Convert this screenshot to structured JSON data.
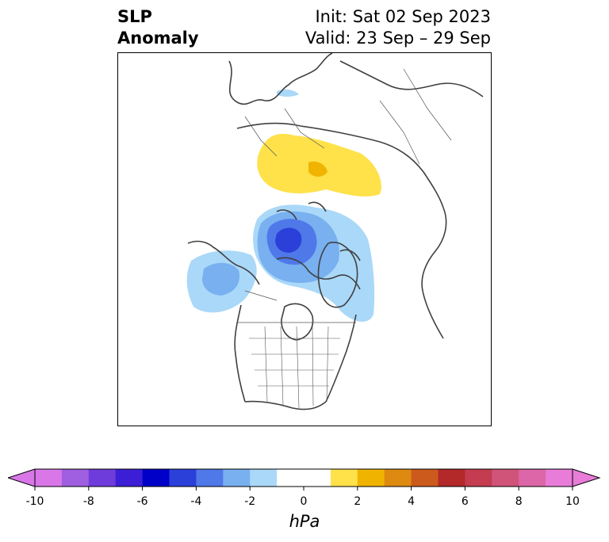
{
  "title": {
    "left_line1": "SLP",
    "left_line2": "Anomaly",
    "right_line1": "Init: Sat 02 Sep 2023",
    "right_line2": "Valid: 23 Sep – 29 Sep"
  },
  "map": {
    "projection": "north-polar-stereographic",
    "features": [
      {
        "name": "positive-anomaly-siberia",
        "level_hPa": 2,
        "color": "#ffe14a"
      },
      {
        "name": "positive-anomaly-core",
        "level_hPa": 4,
        "color": "#f0b400"
      },
      {
        "name": "negative-anomaly-arctic",
        "level_hPa": -2,
        "color": "#aad8f8"
      },
      {
        "name": "negative-anomaly-arctic-mid",
        "level_hPa": -4,
        "color": "#78b0f0"
      },
      {
        "name": "negative-anomaly-arctic-core",
        "level_hPa": -6,
        "color": "#2a40d8"
      },
      {
        "name": "negative-anomaly-alaska",
        "level_hPa": -4,
        "color": "#78b0f0"
      }
    ]
  },
  "colorbar": {
    "unit": "hPa",
    "ticks": [
      "-10",
      "-8",
      "-6",
      "-4",
      "-2",
      "0",
      "2",
      "4",
      "6",
      "8",
      "10"
    ],
    "bins": [
      {
        "from": -10,
        "to": -9,
        "color": "#d977e8"
      },
      {
        "from": -9,
        "to": -8,
        "color": "#a05ee0"
      },
      {
        "from": -8,
        "to": -7,
        "color": "#6f3cdc"
      },
      {
        "from": -7,
        "to": -6,
        "color": "#3c1ed6"
      },
      {
        "from": -6,
        "to": -5,
        "color": "#0000c8"
      },
      {
        "from": -5,
        "to": -4,
        "color": "#2a40d8"
      },
      {
        "from": -4,
        "to": -3,
        "color": "#4f78e8"
      },
      {
        "from": -3,
        "to": -2,
        "color": "#78b0f0"
      },
      {
        "from": -2,
        "to": -1,
        "color": "#aad8f8"
      },
      {
        "from": -1,
        "to": 1,
        "color": "#ffffff"
      },
      {
        "from": 1,
        "to": 2,
        "color": "#ffe14a"
      },
      {
        "from": 2,
        "to": 3,
        "color": "#f0b400"
      },
      {
        "from": 3,
        "to": 4,
        "color": "#de8a10"
      },
      {
        "from": 4,
        "to": 5,
        "color": "#cc5a1c"
      },
      {
        "from": 5,
        "to": 6,
        "color": "#b32828"
      },
      {
        "from": 6,
        "to": 7,
        "color": "#c43c50"
      },
      {
        "from": 7,
        "to": 8,
        "color": "#d0547a"
      },
      {
        "from": 8,
        "to": 9,
        "color": "#dc66a8"
      },
      {
        "from": 9,
        "to": 10,
        "color": "#e87cd8"
      }
    ],
    "extend_low_color": "#d977e8",
    "extend_high_color": "#e87cd8"
  }
}
